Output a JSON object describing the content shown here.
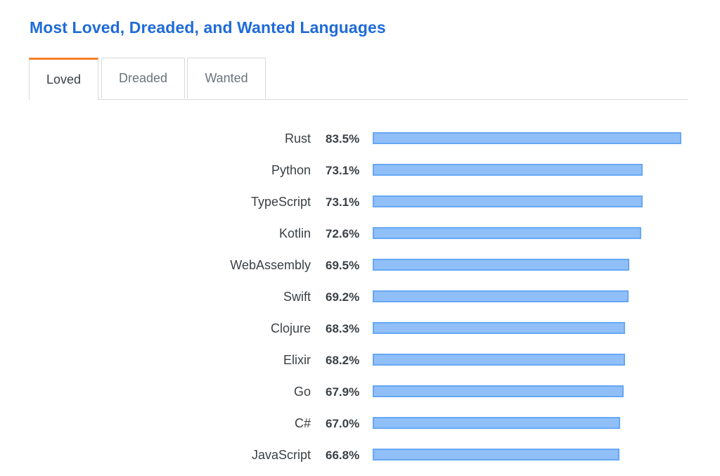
{
  "title": "Most Loved, Dreaded, and Wanted Languages",
  "tabs": [
    {
      "label": "Loved",
      "active": true
    },
    {
      "label": "Dreaded",
      "active": false
    },
    {
      "label": "Wanted",
      "active": false
    }
  ],
  "colors": {
    "title": "#1f6bd8",
    "bar_fill": "#90bff8",
    "bar_border": "#68a8f4",
    "active_tab_accent": "#f48024"
  },
  "chart_data": {
    "type": "bar",
    "orientation": "horizontal",
    "title": "Most Loved, Dreaded, and Wanted Languages",
    "xlabel": "",
    "ylabel": "",
    "xlim": [
      0,
      83.5
    ],
    "categories": [
      "Rust",
      "Python",
      "TypeScript",
      "Kotlin",
      "WebAssembly",
      "Swift",
      "Clojure",
      "Elixir",
      "Go",
      "C#",
      "JavaScript"
    ],
    "values": [
      83.5,
      73.1,
      73.1,
      72.6,
      69.5,
      69.2,
      68.3,
      68.2,
      67.9,
      67.0,
      66.8
    ],
    "value_labels": [
      "83.5%",
      "73.1%",
      "73.1%",
      "72.6%",
      "69.5%",
      "69.2%",
      "68.3%",
      "68.2%",
      "67.9%",
      "67.0%",
      "66.8%"
    ]
  }
}
